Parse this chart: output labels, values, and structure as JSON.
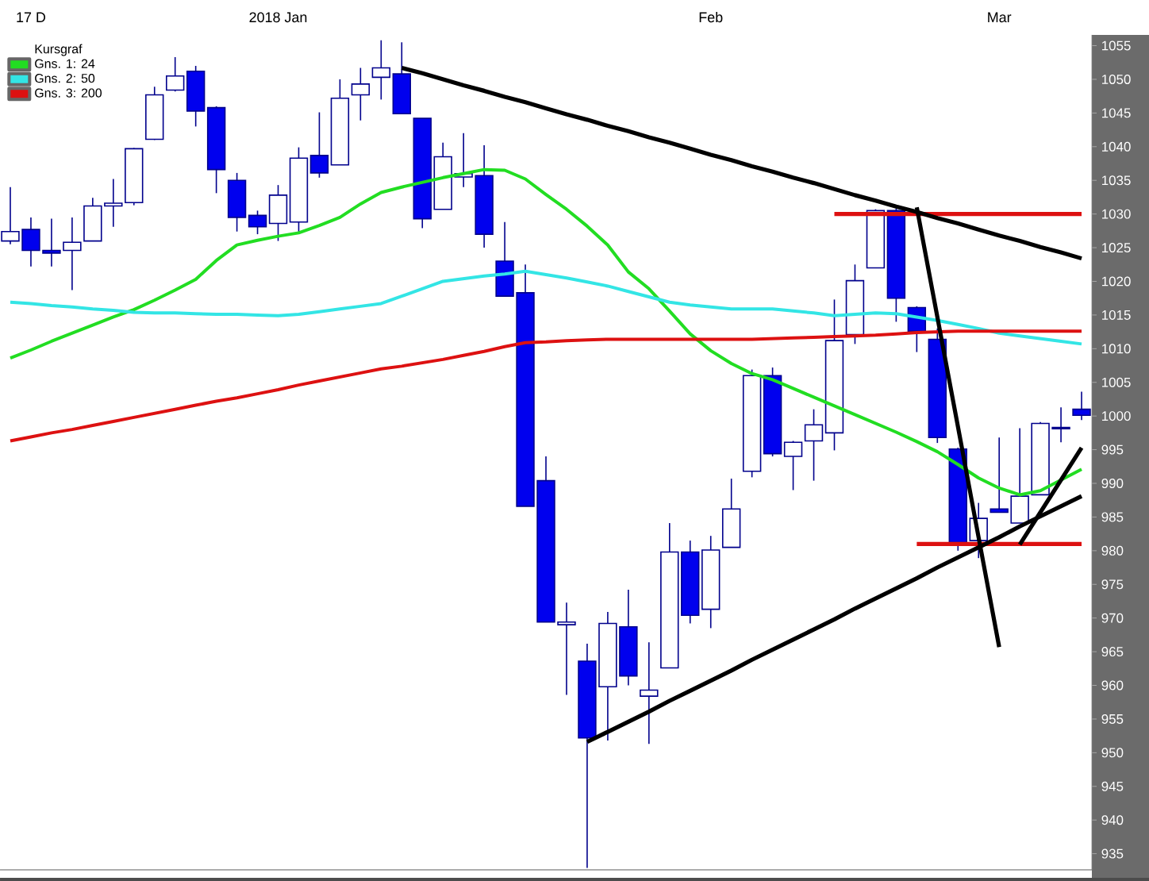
{
  "chart_data": {
    "type": "candlestick",
    "legend_title": "Kursgraf",
    "legend": "top left",
    "grid": false,
    "colors": [
      "#ffffff",
      "#0000ee",
      "#0000ee",
      "#ffffff",
      "#ffffff",
      "#ffffff",
      "#ffffff",
      "#ffffff",
      "#ffffff",
      "#0000ee",
      "#0000ee",
      "#0000ee",
      "#0000ee",
      "#ffffff",
      "#ffffff",
      "#0000ee",
      "#ffffff",
      "#ffffff",
      "#ffffff",
      "#0000ee",
      "#0000ee",
      "#ffffff",
      "#ffffff",
      "#0000ee",
      "#0000ee",
      "#0000ee",
      "#0000ee",
      "#ffffff",
      "#0000ee",
      "#ffffff",
      "#0000ee",
      "#ffffff",
      "#ffffff",
      "#0000ee",
      "#ffffff",
      "#ffffff",
      "#ffffff",
      "#0000ee",
      "#ffffff",
      "#ffffff",
      "#ffffff",
      "#ffffff",
      "#ffffff",
      "#0000ee",
      "#0000ee",
      "#0000ee",
      "#0000ee",
      "#ffffff",
      "#0000ee",
      "#ffffff",
      "#ffffff",
      "#ffffff",
      "#0000ee"
    ],
    "categories": [
      null,
      "17 D",
      null,
      null,
      null,
      null,
      null,
      null,
      null,
      null,
      null,
      null,
      null,
      "2018 Jan",
      null,
      null,
      null,
      null,
      null,
      null,
      null,
      null,
      null,
      null,
      null,
      null,
      null,
      null,
      null,
      null,
      null,
      null,
      null,
      null,
      "Feb",
      null,
      null,
      null,
      null,
      null,
      null,
      null,
      null,
      null,
      null,
      null,
      null,
      null,
      "Mar",
      null,
      null,
      null,
      null
    ],
    "ohlc": [
      [
        1026,
        1034,
        1025.5,
        1027.4
      ],
      [
        1027.7,
        1029.5,
        1022.2,
        1024.6
      ],
      [
        1024.6,
        1029.3,
        1022.2,
        1024.2
      ],
      [
        1024.6,
        1029.5,
        1018.7,
        1025.8
      ],
      [
        1026,
        1032.4,
        1026,
        1031.2
      ],
      [
        1031.2,
        1035.2,
        1028.1,
        1031.6
      ],
      [
        1031.7,
        1039.8,
        1031.3,
        1039.7
      ],
      [
        1041.1,
        1048.9,
        1041,
        1047.7
      ],
      [
        1048.4,
        1053.3,
        1048.2,
        1050.5
      ],
      [
        1051.2,
        1052,
        1043,
        1045.3
      ],
      [
        1045.8,
        1046,
        1033.1,
        1036.6
      ],
      [
        1035,
        1036.1,
        1027.4,
        1029.5
      ],
      [
        1029.8,
        1030.5,
        1027,
        1028.1
      ],
      [
        1028.6,
        1034.3,
        1026,
        1032.8
      ],
      [
        1028.8,
        1039.9,
        1027.2,
        1038.3
      ],
      [
        1038.7,
        1045.1,
        1035.4,
        1036.1
      ],
      [
        1037.3,
        1050,
        1037.3,
        1047.2
      ],
      [
        1047.7,
        1051.7,
        1043.9,
        1049.3
      ],
      [
        1050.3,
        1055.8,
        1047,
        1051.7
      ],
      [
        1050.8,
        1055.5,
        1044.9,
        1044.9
      ],
      [
        1044.2,
        1044.2,
        1027.9,
        1029.3
      ],
      [
        1030.7,
        1040.6,
        1030.7,
        1038.5
      ],
      [
        1035.5,
        1042,
        1034,
        1036
      ],
      [
        1035.7,
        1040.2,
        1025,
        1027
      ],
      [
        1023,
        1028.8,
        1017.8,
        1017.8
      ],
      [
        1018.3,
        1022.5,
        986.6,
        986.6
      ],
      [
        990.4,
        994,
        969.4,
        969.4
      ],
      [
        969,
        972.3,
        958.6,
        969.4
      ],
      [
        963.6,
        966.2,
        932.9,
        952.2
      ],
      [
        959.8,
        970.9,
        951.8,
        969.2
      ],
      [
        968.7,
        974.2,
        960,
        961.4
      ],
      [
        958.4,
        966.4,
        951.3,
        959.3
      ],
      [
        962.6,
        984.1,
        962.6,
        979.8
      ],
      [
        979.8,
        981.5,
        969.2,
        970.4
      ],
      [
        971.3,
        982.2,
        968.5,
        980.1
      ],
      [
        980.5,
        990.7,
        980.5,
        986.2
      ],
      [
        991.8,
        1006.9,
        990.9,
        1006
      ],
      [
        1006,
        1007.2,
        994,
        994.4
      ],
      [
        994,
        996.3,
        989,
        996.1
      ],
      [
        996.3,
        1001,
        990.4,
        998.7
      ],
      [
        997.5,
        1017.3,
        994.9,
        1011.2
      ],
      [
        1012.1,
        1022.5,
        1010.7,
        1020.1
      ],
      [
        1022,
        1030.7,
        1022,
        1030.5
      ],
      [
        1030.5,
        1030.8,
        1014,
        1017.5
      ],
      [
        1016.1,
        1016.3,
        1009.5,
        1012.6
      ],
      [
        1011.4,
        1013,
        996,
        996.8
      ],
      [
        995.1,
        995.3,
        980,
        981.2
      ],
      [
        981.5,
        987.1,
        978.9,
        984.8
      ],
      [
        986.2,
        996.8,
        985.7,
        985.7
      ],
      [
        984.1,
        998.2,
        984.1,
        988.1
      ],
      [
        988.3,
        999.1,
        988.3,
        998.9
      ],
      [
        998.1,
        1001.3,
        996.1,
        998.3
      ],
      [
        1001,
        1003.6,
        999.4,
        1000.1
      ]
    ],
    "series": [
      {
        "type": "line",
        "name": "Gns. 1: 24",
        "color": "#22dd22",
        "values": [
          1008.6,
          1009.8,
          1011.1,
          1012.3,
          1013.5,
          1014.7,
          1015.8,
          1017.2,
          1018.7,
          1020.3,
          1023.1,
          1025.4,
          1026.1,
          1026.7,
          1027.2,
          1028.3,
          1029.5,
          1031.5,
          1033.2,
          1034.0,
          1034.7,
          1035.4,
          1036.0,
          1036.6,
          1036.5,
          1035.2,
          1032.9,
          1030.7,
          1028.2,
          1025.4,
          1021.4,
          1018.9,
          1015.6,
          1012.2,
          1009.7,
          1007.8,
          1006.3,
          1005.4,
          1004.1,
          1002.8,
          1001.5,
          1000.2,
          998.9,
          997.6,
          996.2,
          994.7,
          992.8,
          990.8,
          989.3,
          988.3,
          988.9,
          990.5,
          992.1
        ]
      },
      {
        "type": "line",
        "name": "Gns. 2: 50",
        "color": "#33e5e5",
        "values": [
          1016.9,
          1016.7,
          1016.4,
          1016.2,
          1015.9,
          1015.7,
          1015.4,
          1015.3,
          1015.3,
          1015.2,
          1015.1,
          1015.1,
          1015.0,
          1014.9,
          1015.1,
          1015.5,
          1015.9,
          1016.3,
          1016.7,
          1017.8,
          1018.9,
          1020.0,
          1020.4,
          1020.8,
          1021.1,
          1021.5,
          1021.0,
          1020.5,
          1019.9,
          1019.3,
          1018.5,
          1017.7,
          1016.9,
          1016.5,
          1016.2,
          1015.9,
          1015.9,
          1015.9,
          1015.6,
          1015.3,
          1014.9,
          1015.1,
          1015.3,
          1015.2,
          1014.7,
          1014.2,
          1013.6,
          1013.0,
          1012.3,
          1011.9,
          1011.5,
          1011.1,
          1010.7
        ]
      },
      {
        "type": "line",
        "name": "Gns. 3: 200",
        "color": "#dd1111",
        "values": [
          996.3,
          996.9,
          997.5,
          998.0,
          998.6,
          999.2,
          999.8,
          1000.4,
          1001.0,
          1001.6,
          1002.2,
          1002.7,
          1003.3,
          1003.9,
          1004.6,
          1005.2,
          1005.8,
          1006.4,
          1007.0,
          1007.4,
          1007.9,
          1008.4,
          1009.0,
          1009.6,
          1010.3,
          1010.9,
          1011.0,
          1011.2,
          1011.3,
          1011.4,
          1011.4,
          1011.4,
          1011.4,
          1011.4,
          1011.4,
          1011.4,
          1011.4,
          1011.5,
          1011.6,
          1011.7,
          1011.8,
          1011.9,
          1012.0,
          1012.2,
          1012.4,
          1012.5,
          1012.6,
          1012.6,
          1012.6,
          1012.6,
          1012.6,
          1012.6,
          1012.6
        ]
      },
      {
        "type": "line",
        "color": "#dd1111",
        "values": [
          null,
          null,
          null,
          null,
          null,
          null,
          null,
          null,
          null,
          null,
          null,
          null,
          null,
          null,
          null,
          null,
          null,
          null,
          null,
          null,
          null,
          null,
          null,
          null,
          null,
          null,
          null,
          null,
          null,
          null,
          null,
          null,
          null,
          null,
          null,
          null,
          null,
          null,
          null,
          null,
          1030,
          1030,
          1030,
          1030,
          1030,
          1030,
          1030,
          1030,
          1030,
          1030,
          1030,
          1030,
          1030
        ]
      },
      {
        "type": "line",
        "color": "#dd1111",
        "values": [
          null,
          null,
          null,
          null,
          null,
          null,
          null,
          null,
          null,
          null,
          null,
          null,
          null,
          null,
          null,
          null,
          null,
          null,
          null,
          null,
          null,
          null,
          null,
          null,
          null,
          null,
          null,
          null,
          null,
          null,
          null,
          null,
          null,
          null,
          null,
          null,
          null,
          null,
          null,
          null,
          null,
          null,
          null,
          null,
          981,
          981,
          981,
          981,
          981,
          981,
          981,
          981,
          981
        ]
      },
      {
        "type": "line",
        "color": "#000000",
        "values": [
          null,
          null,
          null,
          null,
          null,
          null,
          null,
          null,
          null,
          null,
          null,
          null,
          null,
          null,
          null,
          null,
          null,
          null,
          null,
          1051.7,
          1050.9,
          1050.0,
          1049.1,
          1048.3,
          1047.4,
          1046.6,
          1045.7,
          1044.8,
          1044.0,
          1043.1,
          1042.3,
          1041.4,
          1040.6,
          1039.7,
          1038.8,
          1038.0,
          1037.1,
          1036.3,
          1035.4,
          1034.6,
          1033.7,
          1032.8,
          1032.0,
          1031.1,
          1030.3,
          1029.4,
          1028.6,
          1027.7,
          1026.8,
          1026.0,
          1025.1,
          1024.3,
          1023.4
        ]
      },
      {
        "type": "line",
        "color": "#000000",
        "values": [
          null,
          null,
          null,
          null,
          null,
          null,
          null,
          null,
          null,
          null,
          null,
          null,
          null,
          null,
          null,
          null,
          null,
          null,
          null,
          null,
          null,
          null,
          null,
          null,
          null,
          null,
          null,
          null,
          null,
          null,
          null,
          null,
          null,
          null,
          null,
          null,
          null,
          null,
          null,
          null,
          null,
          null,
          null,
          null,
          1031,
          1014.7,
          998.4,
          982.0,
          965.7,
          null,
          null,
          null,
          null
        ]
      },
      {
        "type": "line",
        "color": "#000000",
        "values": [
          null,
          null,
          null,
          null,
          null,
          null,
          null,
          null,
          null,
          null,
          null,
          null,
          null,
          null,
          null,
          null,
          null,
          null,
          null,
          null,
          null,
          null,
          null,
          null,
          null,
          null,
          null,
          null,
          951.6,
          953.1,
          954.6,
          956.1,
          957.7,
          959.2,
          960.7,
          962.2,
          963.8,
          965.3,
          966.8,
          968.3,
          969.8,
          971.4,
          972.9,
          974.4,
          975.9,
          977.5,
          979.0,
          980.5,
          982.0,
          983.6,
          985.1,
          986.6,
          988.1
        ]
      },
      {
        "type": "line",
        "color": "#000000",
        "values": [
          null,
          null,
          null,
          null,
          null,
          null,
          null,
          null,
          null,
          null,
          null,
          null,
          null,
          null,
          null,
          null,
          null,
          null,
          null,
          null,
          null,
          null,
          null,
          null,
          null,
          null,
          null,
          null,
          null,
          null,
          null,
          null,
          null,
          null,
          null,
          null,
          null,
          null,
          null,
          null,
          null,
          null,
          null,
          null,
          null,
          null,
          null,
          null,
          null,
          980.9,
          985.7,
          990.5,
          995.3
        ]
      }
    ],
    "ylim": [
      932.6,
      1056.6
    ],
    "yticks": [
      935,
      940,
      945,
      950,
      955,
      960,
      965,
      970,
      975,
      980,
      985,
      990,
      995,
      1000,
      1005,
      1010,
      1015,
      1020,
      1025,
      1030,
      1035,
      1040,
      1045,
      1050,
      1055
    ]
  }
}
